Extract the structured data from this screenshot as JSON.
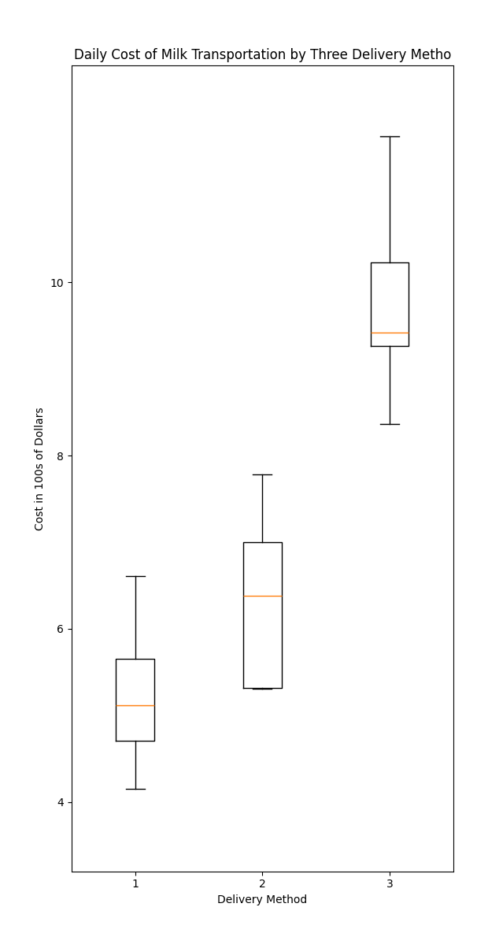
{
  "chart_data": {
    "type": "box",
    "title": "Daily Cost of Milk Transportation by Three Delivery Metho",
    "xlabel": "Delivery Method",
    "ylabel": "Cost in 100s of Dollars",
    "categories": [
      "1",
      "2",
      "3"
    ],
    "values": [
      [
        4.89,
        5.34,
        6.61,
        4.15
      ],
      [
        5.31,
        6.38,
        7.0,
        7.78,
        5.32
      ],
      [
        9.26,
        9.42,
        8.36,
        11.68,
        10.23
      ]
    ],
    "ylim": [
      3.2,
      12.5
    ],
    "yticks": [
      4,
      6,
      8,
      10
    ],
    "grid": false
  }
}
